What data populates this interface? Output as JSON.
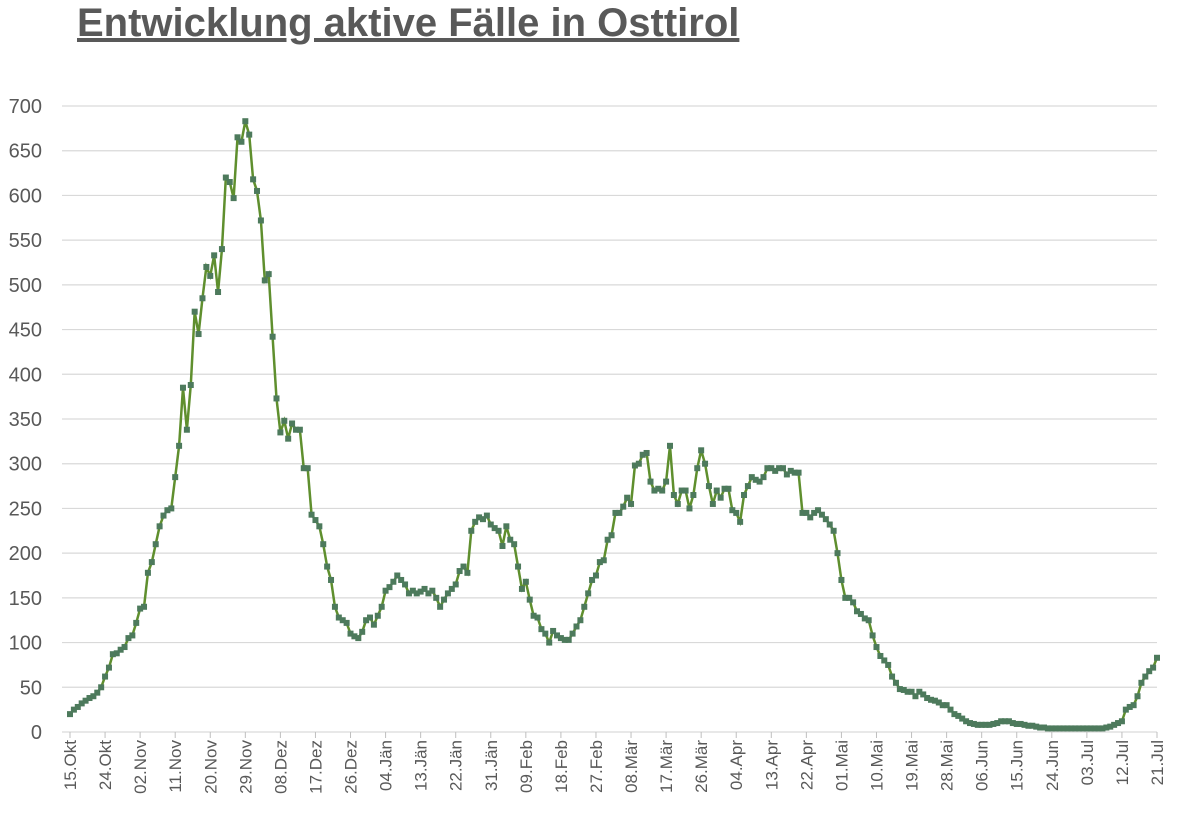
{
  "chart_data": {
    "type": "line",
    "title": "Entwicklung aktive Fälle in Osttirol",
    "categories": [
      "15.Okt",
      null,
      null,
      null,
      null,
      null,
      null,
      null,
      null,
      "24.Okt",
      null,
      null,
      null,
      null,
      null,
      null,
      null,
      null,
      "02.Nov",
      null,
      null,
      null,
      null,
      null,
      null,
      null,
      null,
      "11.Nov",
      null,
      null,
      null,
      null,
      null,
      null,
      null,
      null,
      "20.Nov",
      null,
      null,
      null,
      null,
      null,
      null,
      null,
      null,
      "29.Nov",
      null,
      null,
      null,
      null,
      null,
      null,
      null,
      null,
      "08.Dez",
      null,
      null,
      null,
      null,
      null,
      null,
      null,
      null,
      "17.Dez",
      null,
      null,
      null,
      null,
      null,
      null,
      null,
      null,
      "26.Dez",
      null,
      null,
      null,
      null,
      null,
      null,
      null,
      null,
      "04.Jän",
      null,
      null,
      null,
      null,
      null,
      null,
      null,
      null,
      "13.Jän",
      null,
      null,
      null,
      null,
      null,
      null,
      null,
      null,
      "22.Jän",
      null,
      null,
      null,
      null,
      null,
      null,
      null,
      null,
      "31.Jän",
      null,
      null,
      null,
      null,
      null,
      null,
      null,
      null,
      "09.Feb",
      null,
      null,
      null,
      null,
      null,
      null,
      null,
      null,
      "18.Feb",
      null,
      null,
      null,
      null,
      null,
      null,
      null,
      null,
      "27.Feb",
      null,
      null,
      null,
      null,
      null,
      null,
      null,
      null,
      "08.Mär",
      null,
      null,
      null,
      null,
      null,
      null,
      null,
      null,
      "17.Mär",
      null,
      null,
      null,
      null,
      null,
      null,
      null,
      null,
      "26.Mär",
      null,
      null,
      null,
      null,
      null,
      null,
      null,
      null,
      "04.Apr",
      null,
      null,
      null,
      null,
      null,
      null,
      null,
      null,
      "13.Apr",
      null,
      null,
      null,
      null,
      null,
      null,
      null,
      null,
      "22.Apr",
      null,
      null,
      null,
      null,
      null,
      null,
      null,
      null,
      "01.Mai",
      null,
      null,
      null,
      null,
      null,
      null,
      null,
      null,
      "10.Mai",
      null,
      null,
      null,
      null,
      null,
      null,
      null,
      null,
      "19.Mai",
      null,
      null,
      null,
      null,
      null,
      null,
      null,
      null,
      "28.Mai",
      null,
      null,
      null,
      null,
      null,
      null,
      null,
      null,
      "06.Jun",
      null,
      null,
      null,
      null,
      null,
      null,
      null,
      null,
      "15.Jun",
      null,
      null,
      null,
      null,
      null,
      null,
      null,
      null,
      "24.Jun",
      null,
      null,
      null,
      null,
      null,
      null,
      null,
      null,
      "03.Jul",
      null,
      null,
      null,
      null,
      null,
      null,
      null,
      null,
      "12.Jul",
      null,
      null,
      null,
      null,
      null,
      null,
      null,
      null,
      "21.Jul"
    ],
    "values": [
      20,
      25,
      28,
      32,
      35,
      38,
      40,
      44,
      50,
      62,
      72,
      87,
      88,
      92,
      95,
      105,
      108,
      122,
      138,
      140,
      178,
      190,
      210,
      230,
      242,
      248,
      250,
      285,
      320,
      385,
      338,
      388,
      470,
      445,
      485,
      520,
      510,
      533,
      492,
      540,
      620,
      615,
      597,
      665,
      660,
      683,
      668,
      618,
      605,
      572,
      505,
      512,
      442,
      373,
      335,
      348,
      328,
      345,
      338,
      338,
      295,
      295,
      243,
      237,
      230,
      210,
      185,
      170,
      140,
      128,
      125,
      122,
      110,
      107,
      105,
      112,
      125,
      128,
      120,
      130,
      140,
      158,
      162,
      168,
      175,
      170,
      165,
      155,
      158,
      155,
      157,
      160,
      155,
      158,
      150,
      140,
      148,
      155,
      160,
      165,
      180,
      185,
      178,
      225,
      235,
      240,
      238,
      242,
      232,
      228,
      225,
      208,
      230,
      215,
      210,
      185,
      160,
      168,
      148,
      130,
      128,
      115,
      110,
      100,
      113,
      108,
      105,
      103,
      103,
      110,
      118,
      125,
      140,
      155,
      170,
      175,
      190,
      192,
      215,
      220,
      245,
      245,
      252,
      262,
      255,
      298,
      300,
      310,
      312,
      280,
      270,
      272,
      270,
      280,
      320,
      265,
      255,
      270,
      270,
      250,
      265,
      295,
      315,
      300,
      275,
      255,
      270,
      262,
      272,
      272,
      248,
      245,
      235,
      265,
      275,
      285,
      282,
      280,
      285,
      295,
      295,
      292,
      295,
      295,
      288,
      292,
      290,
      290,
      245,
      245,
      240,
      245,
      248,
      243,
      238,
      232,
      225,
      200,
      170,
      150,
      150,
      145,
      135,
      132,
      127,
      125,
      108,
      95,
      85,
      80,
      75,
      62,
      55,
      48,
      47,
      45,
      45,
      40,
      45,
      42,
      38,
      36,
      35,
      33,
      30,
      30,
      25,
      20,
      18,
      15,
      12,
      10,
      9,
      8,
      8,
      8,
      8,
      9,
      10,
      12,
      12,
      12,
      10,
      9,
      9,
      8,
      7,
      7,
      6,
      5,
      5,
      4,
      4,
      4,
      4,
      4,
      4,
      4,
      4,
      4,
      4,
      4,
      4,
      4,
      4,
      4,
      5,
      6,
      8,
      10,
      12,
      25,
      28,
      30,
      40,
      55,
      62,
      68,
      72,
      83
    ],
    "line_color": "#5f8f2e",
    "marker_color": "#4d7a5c",
    "ylim": [
      0,
      700
    ],
    "yticks": [
      0,
      50,
      100,
      150,
      200,
      250,
      300,
      350,
      400,
      450,
      500,
      550,
      600,
      650,
      700
    ],
    "grid": true
  }
}
